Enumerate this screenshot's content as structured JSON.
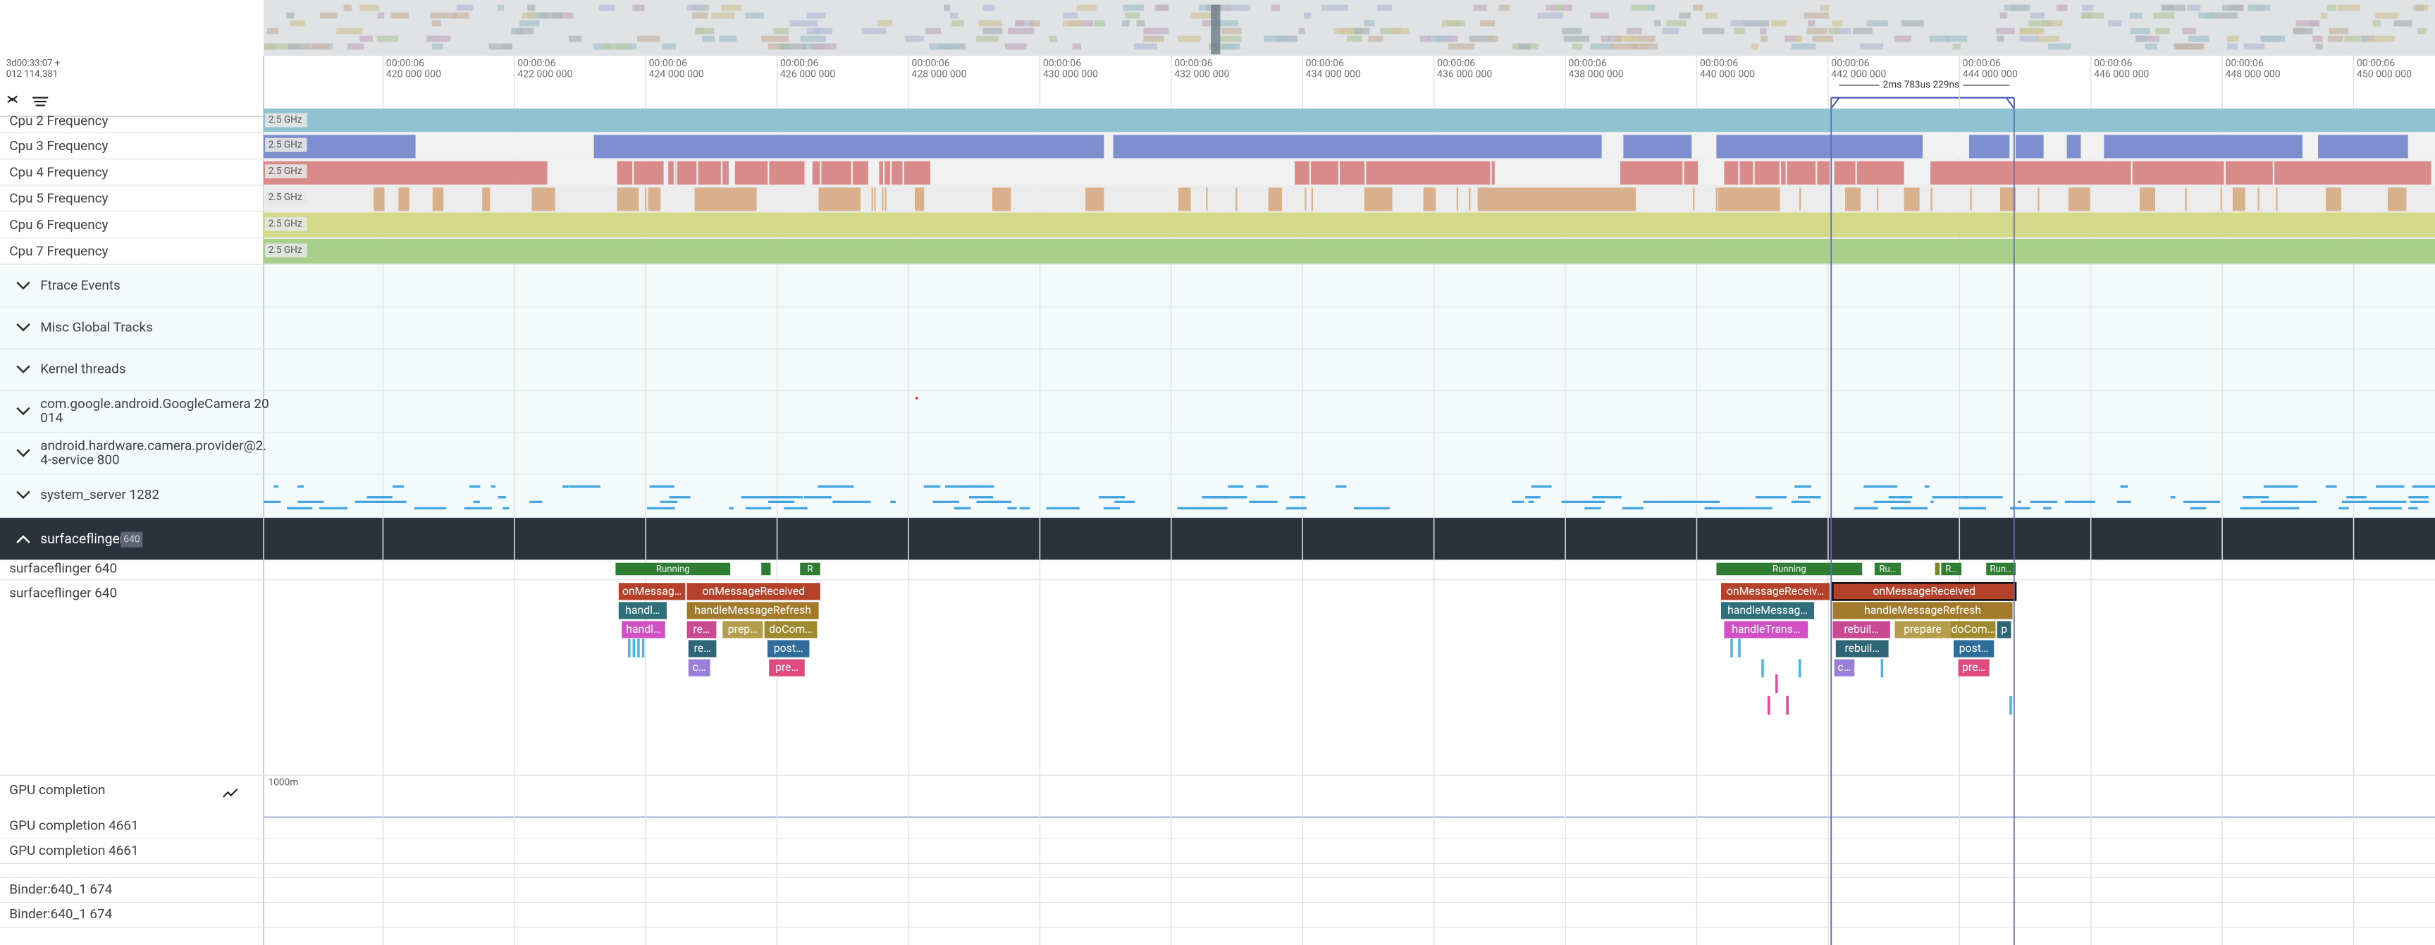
{
  "timeline": {
    "timestamp": "3d00:33:07 +",
    "offset": "012 114.381",
    "ticks": [
      {
        "time": "00:00:06",
        "ns": "420 000 000"
      },
      {
        "time": "00:00:06",
        "ns": "422 000 000"
      },
      {
        "time": "00:00:06",
        "ns": "424 000 000"
      },
      {
        "time": "00:00:06",
        "ns": "426 000 000"
      },
      {
        "time": "00:00:06",
        "ns": "428 000 000"
      },
      {
        "time": "00:00:06",
        "ns": "430 000 000"
      },
      {
        "time": "00:00:06",
        "ns": "432 000 000"
      },
      {
        "time": "00:00:06",
        "ns": "434 000 000"
      },
      {
        "time": "00:00:06",
        "ns": "436 000 000"
      },
      {
        "time": "00:00:06",
        "ns": "438 000 000"
      },
      {
        "time": "00:00:06",
        "ns": "440 000 000"
      },
      {
        "time": "00:00:06",
        "ns": "442 000 000"
      },
      {
        "time": "00:00:06",
        "ns": "444 000 000"
      },
      {
        "time": "00:00:06",
        "ns": "446 000 000"
      },
      {
        "time": "00:00:06",
        "ns": "448 000 000"
      },
      {
        "time": "00:00:06",
        "ns": "450 000 000"
      }
    ],
    "measure": "2ms 783us 229ns"
  },
  "cpu_tracks": [
    {
      "name": "Cpu 2 Frequency",
      "scale": "2.5 GHz"
    },
    {
      "name": "Cpu 3 Frequency",
      "scale": "2.5 GHz"
    },
    {
      "name": "Cpu 4 Frequency",
      "scale": "2.5 GHz"
    },
    {
      "name": "Cpu 5 Frequency",
      "scale": "2.5 GHz"
    },
    {
      "name": "Cpu 6 Frequency",
      "scale": "2.5 GHz"
    },
    {
      "name": "Cpu 7 Frequency",
      "scale": "2.5 GHz"
    }
  ],
  "groups": [
    {
      "lines": [
        "Ftrace Events"
      ]
    },
    {
      "lines": [
        "Misc Global Tracks"
      ]
    },
    {
      "lines": [
        "Kernel threads"
      ]
    },
    {
      "lines": [
        "com.google.android.GoogleCamera 20",
        "014"
      ]
    },
    {
      "lines": [
        "android.hardware.camera.provider@2.",
        "4-service 800"
      ]
    },
    {
      "lines": [
        "system_server 1282"
      ]
    }
  ],
  "process": {
    "name": "surfaceflinger",
    "pid": "640"
  },
  "thread_tracks": [
    "surfaceflinger 640",
    "surfaceflinger 640"
  ],
  "thread_states": [
    "Running",
    "R",
    "Running",
    "Ru…",
    "R…",
    "Run…"
  ],
  "slices": [
    "onMessag…",
    "onMessageReceived",
    "handl…",
    "handleMessageRefresh",
    "handl…",
    "re…",
    "prep…",
    "doCom…",
    "re…",
    "post…",
    "c…",
    "pre…",
    "onMessageReceiv…",
    "onMessageReceived",
    "handleMessag…",
    "handleMessageRefresh",
    "handleTrans…",
    "rebuil…",
    "prepare",
    "doCom…",
    "p",
    "rebuil…",
    "post…",
    "c…",
    "pre…"
  ],
  "counter_track": {
    "name": "GPU completion",
    "max": "1000m"
  },
  "other_tracks": [
    "GPU completion 4661",
    "GPU completion 4661",
    "Binder:640_1 674",
    "Binder:640_1 674"
  ]
}
